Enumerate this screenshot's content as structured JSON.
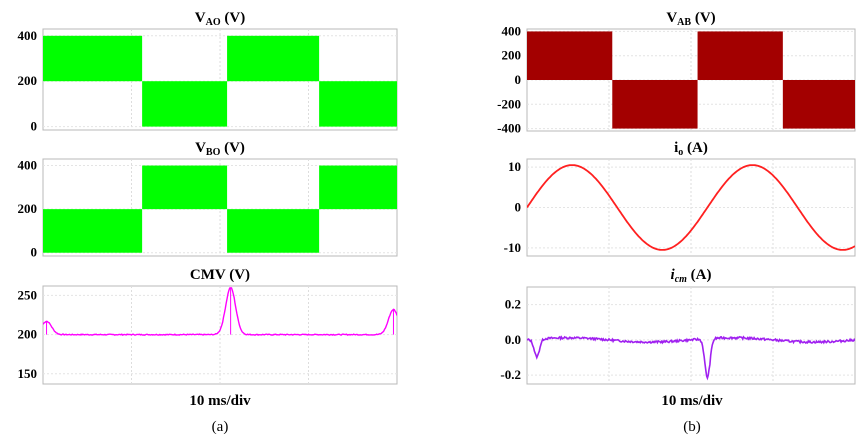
{
  "figure": {
    "caption_a": "(a)",
    "caption_b": "(b)",
    "xlabel_a": "10 ms/div",
    "xlabel_b": "10 ms/div"
  },
  "chart_data": [
    {
      "type": "line",
      "title_main": "V",
      "title_sub": "AO",
      "title_suffix": " (V)",
      "yticks": [
        0,
        200,
        400
      ],
      "ylim": [
        -15,
        430
      ],
      "xlim": [
        0,
        100
      ],
      "grid": true,
      "color": "#00ff00",
      "segments": [
        {
          "x0": 0,
          "x1": 28,
          "low": 200,
          "high": 400
        },
        {
          "x0": 28,
          "x1": 52,
          "low": 0,
          "high": 200
        },
        {
          "x0": 52,
          "x1": 78,
          "low": 200,
          "high": 400
        },
        {
          "x0": 78,
          "x1": 100,
          "low": 0,
          "high": 200
        }
      ]
    },
    {
      "type": "line",
      "title_main": "V",
      "title_sub": "BO",
      "title_suffix": " (V)",
      "yticks": [
        0,
        200,
        400
      ],
      "ylim": [
        -15,
        430
      ],
      "xlim": [
        0,
        100
      ],
      "grid": true,
      "color": "#00ff00",
      "segments": [
        {
          "x0": 0,
          "x1": 28,
          "low": 0,
          "high": 200
        },
        {
          "x0": 28,
          "x1": 52,
          "low": 200,
          "high": 400
        },
        {
          "x0": 52,
          "x1": 78,
          "low": 0,
          "high": 200
        },
        {
          "x0": 78,
          "x1": 100,
          "low": 200,
          "high": 400
        }
      ]
    },
    {
      "type": "line",
      "title_main": "CMV",
      "title_sub": "",
      "title_suffix": " (V)",
      "yticks": [
        150,
        200,
        250
      ],
      "ylim": [
        137,
        262
      ],
      "xlim": [
        0,
        100
      ],
      "grid": true,
      "color": "#ff00ff",
      "baseline": 200,
      "peaks": [
        {
          "x": 1,
          "y": 217
        },
        {
          "x": 53,
          "y": 260
        },
        {
          "x": 99,
          "y": 232
        }
      ]
    },
    {
      "type": "line",
      "title_main": "V",
      "title_sub": "AB",
      "title_suffix": " (V)",
      "yticks": [
        400,
        200,
        0,
        -200,
        -400
      ],
      "ylim": [
        -420,
        420
      ],
      "xlim": [
        0,
        100
      ],
      "grid": true,
      "color": "#a30000",
      "segments": [
        {
          "x0": 0,
          "x1": 26,
          "low": 0,
          "high": 400
        },
        {
          "x0": 26,
          "x1": 52,
          "low": -400,
          "high": 0
        },
        {
          "x0": 52,
          "x1": 78,
          "low": 0,
          "high": 400
        },
        {
          "x0": 78,
          "x1": 100,
          "low": -400,
          "high": 0
        }
      ]
    },
    {
      "type": "line",
      "title_main": "i",
      "title_sub": "o",
      "title_suffix": " (A)",
      "yticks": [
        10,
        0,
        -10
      ],
      "ylim": [
        -12,
        12
      ],
      "xlim": [
        0,
        100
      ],
      "grid": true,
      "color": "#ff2020",
      "sine": {
        "amplitude": 10.5,
        "period": 55,
        "phase": 0
      }
    },
    {
      "type": "line",
      "title_main": "i",
      "title_sub": "cm",
      "title_suffix": " (A)",
      "italic": true,
      "yticks": [
        0.2,
        0.0,
        -0.2
      ],
      "ylim": [
        -0.25,
        0.3
      ],
      "xlim": [
        0,
        100
      ],
      "grid": true,
      "color": "#a020f0",
      "baseline": 0.0,
      "dips": [
        {
          "x": 3,
          "y": -0.1
        },
        {
          "x": 55,
          "y": -0.22
        }
      ]
    }
  ]
}
